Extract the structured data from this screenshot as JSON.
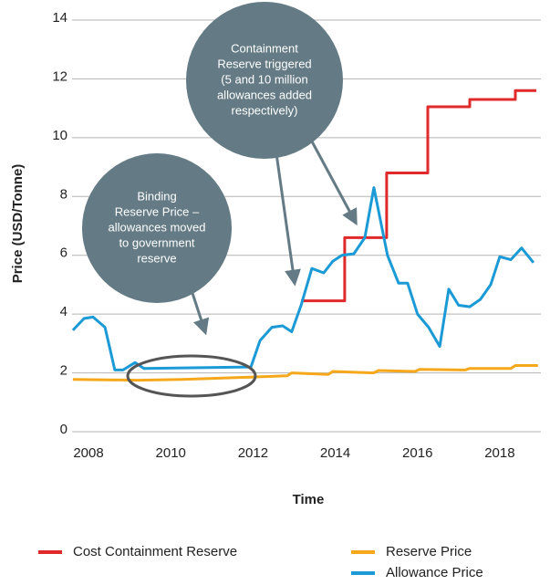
{
  "chart_data": {
    "type": "line",
    "xlabel": "Time",
    "ylabel": "Price (USD/Tonne)",
    "xlim": [
      2007.6,
      2019.0
    ],
    "xticks": [
      2008,
      2010,
      2012,
      2014,
      2016,
      2018
    ],
    "ylim": [
      0,
      14
    ],
    "yticks": [
      0,
      2,
      4,
      6,
      8,
      10,
      12,
      14
    ],
    "grid": true,
    "legend": "bottom",
    "series": [
      {
        "name": "Cost Containment Reserve",
        "color": "#e0292b",
        "x": [
          2013.17,
          2014.23,
          2014.23,
          2015.25,
          2015.25,
          2016.25,
          2016.25,
          2017.27,
          2017.27,
          2018.38,
          2018.38,
          2018.89
        ],
        "values": [
          4.45,
          4.45,
          6.6,
          6.6,
          8.8,
          8.8,
          11.05,
          11.05,
          11.3,
          11.3,
          11.6,
          11.6
        ]
      },
      {
        "name": "Reserve Price",
        "color": "#f5a81c",
        "x": [
          2007.62,
          2009.18,
          2010.28,
          2011.84,
          2012.83,
          2012.94,
          2013.83,
          2013.94,
          2014.94,
          2015.05,
          2015.94,
          2016.05,
          2017.16,
          2017.27,
          2018.27,
          2018.38,
          2018.93
        ],
        "values": [
          1.78,
          1.75,
          1.78,
          1.85,
          1.9,
          2.0,
          1.95,
          2.05,
          2.0,
          2.08,
          2.05,
          2.12,
          2.1,
          2.15,
          2.15,
          2.25,
          2.25
        ]
      },
      {
        "name": "Allowance Price",
        "color": "#1b9ad6",
        "x": [
          2007.62,
          2007.89,
          2008.11,
          2008.4,
          2008.64,
          2008.84,
          2009.13,
          2009.35,
          2011.95,
          2012.17,
          2012.46,
          2012.72,
          2012.94,
          2013.17,
          2013.43,
          2013.72,
          2013.94,
          2014.16,
          2014.45,
          2014.72,
          2014.94,
          2015.27,
          2015.54,
          2015.76,
          2016.0,
          2016.27,
          2016.54,
          2016.76,
          2017.0,
          2017.27,
          2017.53,
          2017.78,
          2018.0,
          2018.27,
          2018.53,
          2018.82
        ],
        "values": [
          3.45,
          3.85,
          3.9,
          3.55,
          2.1,
          2.1,
          2.35,
          2.15,
          2.2,
          3.1,
          3.55,
          3.6,
          3.4,
          4.3,
          5.55,
          5.4,
          5.8,
          6.0,
          6.05,
          6.6,
          8.3,
          6.0,
          5.05,
          5.05,
          4.0,
          3.55,
          2.9,
          4.85,
          4.3,
          4.25,
          4.5,
          5.0,
          5.95,
          5.85,
          6.25,
          5.75
        ]
      }
    ],
    "annotations": [
      {
        "lines": [
          "Binding",
          "Reserve Price –",
          "allowances moved",
          "to government",
          "reserve"
        ]
      },
      {
        "lines": [
          "Containment",
          "Reserve triggered",
          "(5 and 10 million",
          "allowances added",
          "respectively)"
        ]
      }
    ]
  }
}
